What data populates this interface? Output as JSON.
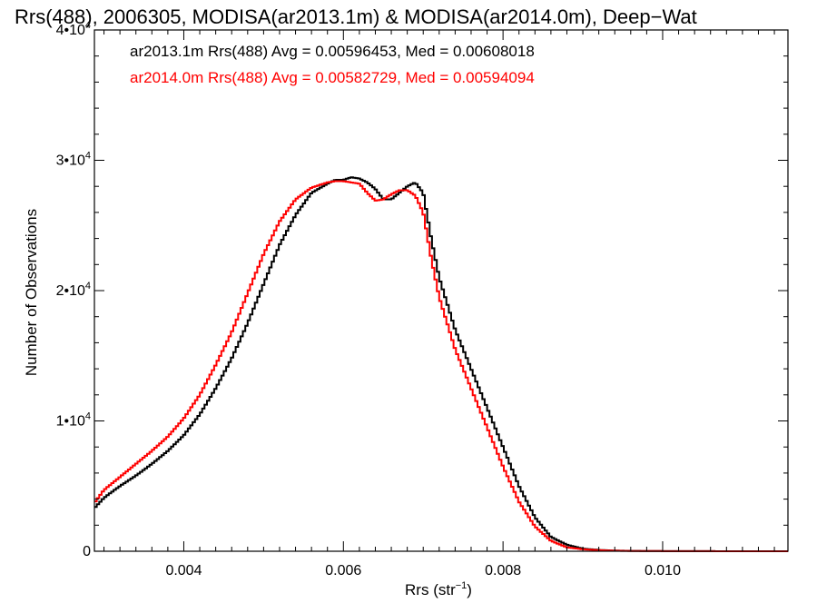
{
  "chart_data": {
    "type": "line",
    "title": "Rrs(488), 2006305, MODISA(ar2013.1m) & MODISA(ar2014.0m), Deep−Wat",
    "xlabel": "Rrs (str",
    "xlabel_sup": "−1",
    "xlabel_close": ")",
    "ylabel": "Number of Observations",
    "xlim": [
      0.00288,
      0.01157
    ],
    "ylim": [
      0,
      40000
    ],
    "x_ticks": [
      {
        "value": 0.004,
        "label": "0.004"
      },
      {
        "value": 0.006,
        "label": "0.006"
      },
      {
        "value": 0.008,
        "label": "0.008"
      },
      {
        "value": 0.01,
        "label": "0.010"
      }
    ],
    "x_minor_step": 0.0002,
    "y_ticks": [
      {
        "value": 0,
        "label": "0",
        "sup": ""
      },
      {
        "value": 10000,
        "label": "1•10",
        "sup": "4"
      },
      {
        "value": 20000,
        "label": "2•10",
        "sup": "4"
      },
      {
        "value": 30000,
        "label": "3•10",
        "sup": "4"
      },
      {
        "value": 40000,
        "label": "4•10",
        "sup": "4"
      }
    ],
    "y_minor_step": 2000,
    "step_style": "histogram",
    "series": [
      {
        "legend": "ar2013.1m Rrs(488) Avg = 0.00596453, Med = 0.00608018",
        "color": "#000000",
        "x": [
          0.00288,
          0.003,
          0.0032,
          0.0034,
          0.0036,
          0.0038,
          0.004,
          0.0042,
          0.0044,
          0.0046,
          0.0048,
          0.005,
          0.0052,
          0.0054,
          0.0056,
          0.0058,
          0.0059,
          0.006,
          0.0061,
          0.0062,
          0.0063,
          0.0064,
          0.0065,
          0.0066,
          0.0067,
          0.0068,
          0.0069,
          0.007,
          0.0071,
          0.0072,
          0.0074,
          0.0076,
          0.0078,
          0.008,
          0.0082,
          0.0084,
          0.0086,
          0.0088,
          0.009,
          0.0092,
          0.0094,
          0.0096,
          0.01,
          0.0105,
          0.011,
          0.01157
        ],
        "y": [
          3300,
          4100,
          5000,
          5800,
          6700,
          7700,
          8900,
          10500,
          12500,
          14800,
          17500,
          20500,
          23500,
          25800,
          27500,
          28200,
          28500,
          28500,
          28700,
          28600,
          28300,
          27800,
          27000,
          27000,
          27500,
          28000,
          28300,
          27500,
          24000,
          21000,
          17000,
          14000,
          11000,
          8000,
          5000,
          2600,
          1100,
          500,
          200,
          100,
          50,
          30,
          10,
          5,
          0,
          0
        ]
      },
      {
        "legend": "ar2014.0m Rrs(488) Avg = 0.00582729, Med = 0.00594094",
        "color": "#ff0000",
        "x": [
          0.00288,
          0.003,
          0.0032,
          0.0034,
          0.0036,
          0.0038,
          0.004,
          0.0042,
          0.0044,
          0.0046,
          0.0048,
          0.005,
          0.0052,
          0.0054,
          0.0056,
          0.0058,
          0.0059,
          0.006,
          0.0061,
          0.0062,
          0.0063,
          0.0064,
          0.0065,
          0.0066,
          0.0067,
          0.0068,
          0.0069,
          0.007,
          0.0071,
          0.0072,
          0.0074,
          0.0076,
          0.0078,
          0.008,
          0.0082,
          0.0084,
          0.0086,
          0.0088,
          0.009,
          0.0092,
          0.0094,
          0.0096,
          0.01,
          0.0105,
          0.011,
          0.01157
        ],
        "y": [
          3700,
          4700,
          5700,
          6700,
          7700,
          8800,
          10200,
          12000,
          14300,
          16800,
          19800,
          22800,
          25300,
          27000,
          27900,
          28300,
          28400,
          28400,
          28300,
          28200,
          27500,
          26900,
          27000,
          27400,
          27700,
          27700,
          27300,
          26000,
          22500,
          19500,
          15500,
          12500,
          9500,
          6500,
          3800,
          1900,
          800,
          300,
          150,
          80,
          40,
          20,
          10,
          5,
          0,
          0
        ]
      }
    ]
  }
}
